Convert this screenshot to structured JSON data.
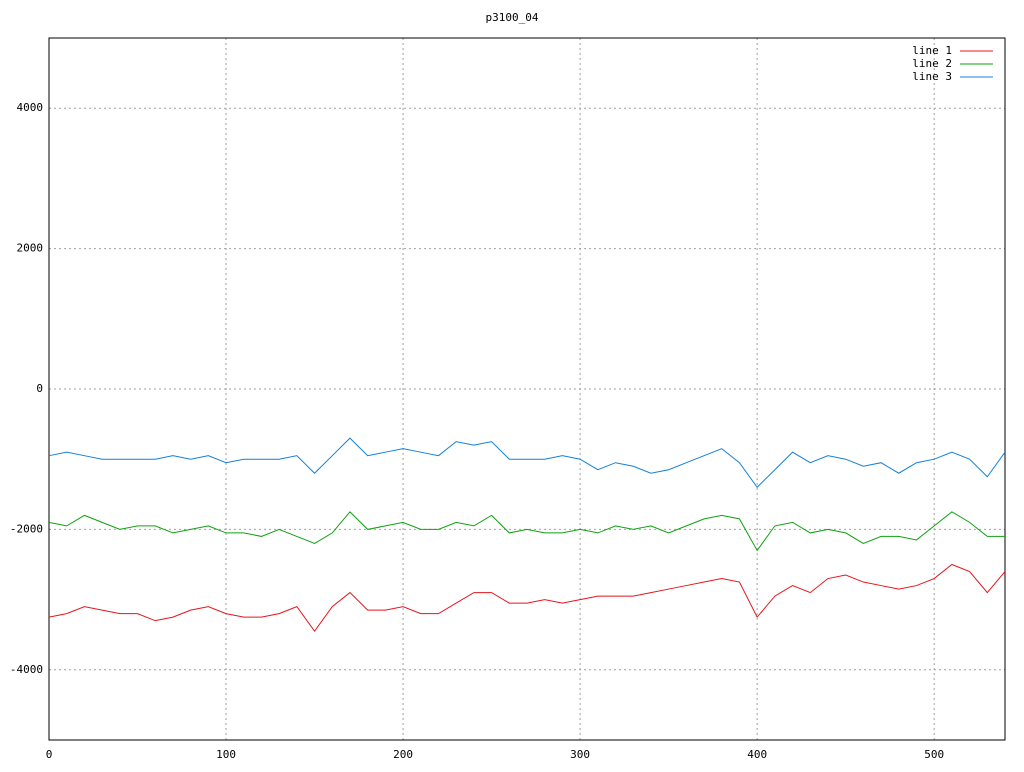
{
  "chart_data": {
    "type": "line",
    "title": "p3100_04",
    "x": [
      0,
      10,
      20,
      30,
      40,
      50,
      60,
      70,
      80,
      90,
      100,
      110,
      120,
      130,
      140,
      150,
      160,
      170,
      180,
      190,
      200,
      210,
      220,
      230,
      240,
      250,
      260,
      270,
      280,
      290,
      300,
      310,
      320,
      330,
      340,
      350,
      360,
      370,
      380,
      390,
      400,
      410,
      420,
      430,
      440,
      450,
      460,
      470,
      480,
      490,
      500,
      510,
      520,
      530,
      540
    ],
    "series": [
      {
        "name": "line 1",
        "color": "#e8141c",
        "values": [
          -3250,
          -3200,
          -3100,
          -3150,
          -3200,
          -3200,
          -3300,
          -3250,
          -3150,
          -3100,
          -3200,
          -3250,
          -3250,
          -3200,
          -3100,
          -3450,
          -3100,
          -2900,
          -3150,
          -3150,
          -3100,
          -3200,
          -3200,
          -3050,
          -2900,
          -2900,
          -3050,
          -3050,
          -3000,
          -3050,
          -3000,
          -2950,
          -2950,
          -2950,
          -2900,
          -2850,
          -2800,
          -2750,
          -2700,
          -2750,
          -3250,
          -2950,
          -2800,
          -2900,
          -2700,
          -2650,
          -2750,
          -2800,
          -2850,
          -2800,
          -2700,
          -2500,
          -2600,
          -2900,
          -2600
        ]
      },
      {
        "name": "line 2",
        "color": "#10a010",
        "values": [
          -1900,
          -1950,
          -1800,
          -1900,
          -2000,
          -1950,
          -1950,
          -2050,
          -2000,
          -1950,
          -2050,
          -2050,
          -2100,
          -2000,
          -2100,
          -2200,
          -2050,
          -1750,
          -2000,
          -1950,
          -1900,
          -2000,
          -2000,
          -1900,
          -1950,
          -1800,
          -2050,
          -2000,
          -2050,
          -2050,
          -2000,
          -2050,
          -1950,
          -2000,
          -1950,
          -2050,
          -1950,
          -1850,
          -1800,
          -1850,
          -2300,
          -1950,
          -1900,
          -2050,
          -2000,
          -2050,
          -2200,
          -2100,
          -2100,
          -2150,
          -1950,
          -1750,
          -1900,
          -2100,
          -2100
        ]
      },
      {
        "name": "line 3",
        "color": "#1480d8",
        "values": [
          -950,
          -900,
          -950,
          -1000,
          -1000,
          -1000,
          -1000,
          -950,
          -1000,
          -950,
          -1050,
          -1000,
          -1000,
          -1000,
          -950,
          -1200,
          -950,
          -700,
          -950,
          -900,
          -850,
          -900,
          -950,
          -750,
          -800,
          -750,
          -1000,
          -1000,
          -1000,
          -950,
          -1000,
          -1150,
          -1050,
          -1100,
          -1200,
          -1150,
          -1050,
          -950,
          -850,
          -1050,
          -1400,
          -1150,
          -900,
          -1050,
          -950,
          -1000,
          -1100,
          -1050,
          -1200,
          -1050,
          -1000,
          -900,
          -1000,
          -1250,
          -900
        ]
      }
    ],
    "xlim": [
      0,
      540
    ],
    "ylim": [
      -5000,
      5000
    ],
    "xticks": [
      0,
      100,
      200,
      300,
      400,
      500
    ],
    "yticks": [
      -4000,
      -2000,
      0,
      2000,
      4000
    ],
    "grid": true,
    "legend": "top-right"
  }
}
